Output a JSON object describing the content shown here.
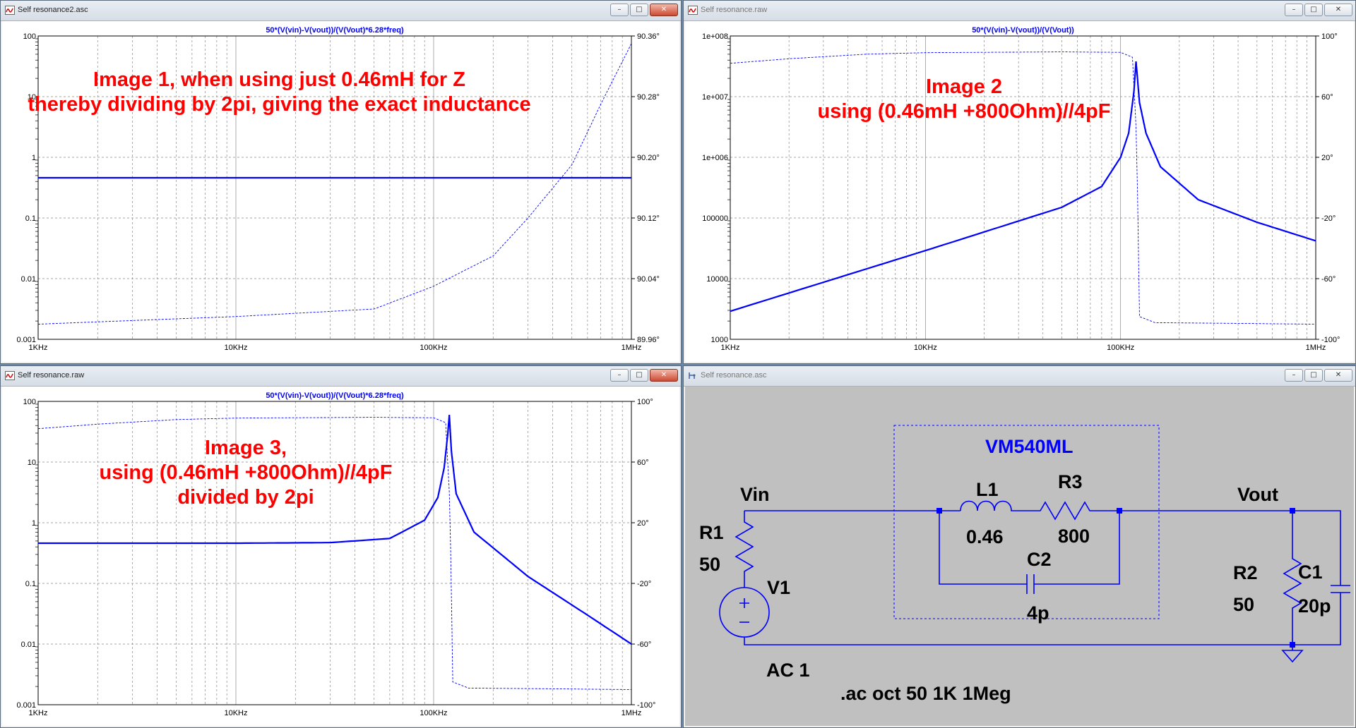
{
  "windows": [
    {
      "title": "Self resonance2.asc",
      "active": true,
      "plot": {
        "trace_title": "50*(V(vin)-V(vout))/(V(Vout)*6.28*freq)",
        "left_ticks": [
          "100",
          "10",
          "1",
          "0.1",
          "0.01",
          "0.001"
        ],
        "right_ticks": [
          "90.36°",
          "90.28°",
          "90.20°",
          "90.12°",
          "90.04°",
          "89.96°"
        ],
        "x_ticks": [
          "1KHz",
          "10KHz",
          "100KHz",
          "1MHz"
        ],
        "annotation": [
          "Image 1, when using just 0.46mH for Z",
          "thereby dividing by 2pi, giving the exact inductance"
        ]
      }
    },
    {
      "title": "Self resonance.raw",
      "active": false,
      "plot": {
        "trace_title": "50*(V(vin)-V(vout))/(V(Vout))",
        "left_ticks": [
          "1e+008",
          "1e+007",
          "1e+006",
          "100000",
          "10000",
          "1000"
        ],
        "right_ticks": [
          "100°",
          "60°",
          "20°",
          "-20°",
          "-60°",
          "-100°"
        ],
        "x_ticks": [
          "1KHz",
          "10KHz",
          "100KHz",
          "1MHz"
        ],
        "annotation": [
          "Image 2",
          "using (0.46mH +800Ohm)//4pF"
        ]
      }
    },
    {
      "title": "Self resonance.raw",
      "active": true,
      "plot": {
        "trace_title": "50*(V(vin)-V(vout))/(V(Vout)*6.28*freq)",
        "left_ticks": [
          "100",
          "10",
          "1",
          "0.1",
          "0.01",
          "0.001"
        ],
        "right_ticks": [
          "100°",
          "60°",
          "20°",
          "-20°",
          "-60°",
          "-100°"
        ],
        "x_ticks": [
          "1KHz",
          "10KHz",
          "100KHz",
          "1MHz"
        ],
        "annotation": [
          "Image 3,",
          "using (0.46mH +800Ohm)//4pF",
          "divided by 2pi"
        ]
      }
    },
    {
      "title": "Self resonance.asc",
      "active": false
    }
  ],
  "schematic": {
    "box_label": "VM540ML",
    "vin_label": "Vin",
    "vout_label": "Vout",
    "r1": {
      "name": "R1",
      "value": "50"
    },
    "v1": {
      "name": "V1",
      "value": "AC 1"
    },
    "l1": {
      "name": "L1",
      "value": "0.46"
    },
    "r3": {
      "name": "R3",
      "value": "800"
    },
    "c2": {
      "name": "C2",
      "value": "4p"
    },
    "r2": {
      "name": "R2",
      "value": "50"
    },
    "c1": {
      "name": "C1",
      "value": "20p"
    },
    "directive": ".ac oct 50 1K 1Meg"
  },
  "chart_data": [
    {
      "type": "line",
      "title": "50*(V(vin)-V(vout))/(V(Vout)*6.28*freq)",
      "x_scale": "log",
      "xlim": [
        1000,
        1000000
      ],
      "ylim_left": [
        0.001,
        100
      ],
      "ylim_right": [
        89.96,
        90.36
      ],
      "grid": true,
      "series": [
        {
          "axis": "left",
          "style": "solid",
          "x": [
            1000,
            1000000
          ],
          "y": [
            0.46,
            0.46
          ]
        },
        {
          "axis": "right",
          "style": "dashed",
          "x": [
            1000,
            10000,
            50000,
            100000,
            200000,
            300000,
            500000,
            700000,
            1000000
          ],
          "y": [
            89.98,
            89.99,
            90.0,
            90.03,
            90.07,
            90.12,
            90.19,
            90.27,
            90.35
          ]
        }
      ]
    },
    {
      "type": "line",
      "title": "50*(V(vin)-V(vout))/(V(Vout))",
      "x_scale": "log",
      "xlim": [
        1000,
        1000000
      ],
      "ylim_left": [
        1000,
        100000000
      ],
      "ylim_right": [
        -100,
        100
      ],
      "grid": true,
      "series": [
        {
          "axis": "left",
          "style": "solid",
          "x": [
            1000,
            10000,
            50000,
            80000,
            100000,
            110000,
            117000,
            120000,
            125000,
            135000,
            160000,
            250000,
            500000,
            1000000
          ],
          "y": [
            2900,
            29000,
            150000,
            330000,
            1000000,
            2500000,
            12000000,
            38000000,
            8000000,
            2500000,
            700000,
            200000,
            85000,
            42000
          ]
        },
        {
          "axis": "right",
          "style": "dashed",
          "x": [
            1000,
            2000,
            5000,
            10000,
            50000,
            100000,
            115000,
            120000,
            122000,
            125000,
            150000,
            1000000
          ],
          "y": [
            82,
            85,
            88,
            89,
            89.5,
            89.2,
            86,
            40,
            0,
            -85,
            -89,
            -90
          ]
        }
      ]
    },
    {
      "type": "line",
      "title": "50*(V(vin)-V(vout))/(V(Vout)*6.28*freq)",
      "x_scale": "log",
      "xlim": [
        1000,
        1000000
      ],
      "ylim_left": [
        0.001,
        100
      ],
      "ylim_right": [
        -100,
        100
      ],
      "grid": true,
      "series": [
        {
          "axis": "left",
          "style": "solid",
          "x": [
            1000,
            10000,
            30000,
            60000,
            90000,
            105000,
            113000,
            118000,
            120000,
            123000,
            130000,
            160000,
            300000,
            600000,
            1000000
          ],
          "y": [
            0.46,
            0.46,
            0.47,
            0.55,
            1.1,
            2.6,
            8,
            30,
            60,
            15,
            3,
            0.7,
            0.13,
            0.03,
            0.01
          ]
        },
        {
          "axis": "right",
          "style": "dashed",
          "x": [
            1000,
            2000,
            5000,
            10000,
            50000,
            100000,
            115000,
            120000,
            122000,
            125000,
            150000,
            1000000
          ],
          "y": [
            82,
            85,
            88,
            89,
            89.5,
            89.2,
            86,
            40,
            0,
            -85,
            -89,
            -90
          ]
        }
      ]
    }
  ]
}
